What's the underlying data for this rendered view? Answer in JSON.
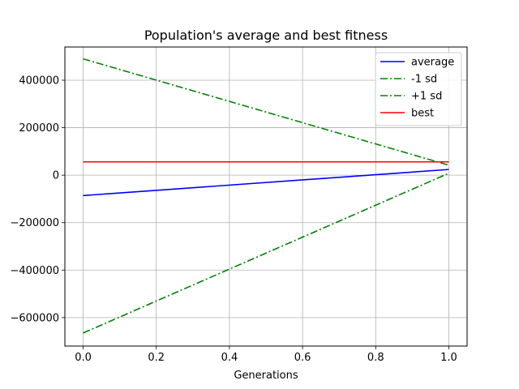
{
  "chart_data": {
    "type": "line",
    "title": "Population's average and best fitness",
    "xlabel": "Generations",
    "ylabel": "",
    "xlim": [
      -0.05,
      1.05
    ],
    "ylim": [
      -720000,
      540000
    ],
    "xticks": [
      0.0,
      0.2,
      0.4,
      0.6,
      0.8,
      1.0
    ],
    "xtick_labels": [
      "0.0",
      "0.2",
      "0.4",
      "0.6",
      "0.8",
      "1.0"
    ],
    "yticks": [
      -600000,
      -400000,
      -200000,
      0,
      200000,
      400000
    ],
    "ytick_labels": [
      "−600000",
      "−400000",
      "−200000",
      "0",
      "200000",
      "400000"
    ],
    "grid": true,
    "legend_position": "top-right",
    "x": [
      0,
      1
    ],
    "series": [
      {
        "name": "average",
        "values": [
          -86000,
          24000
        ],
        "color": "#0000ff",
        "style": "solid"
      },
      {
        "name": "-1 sd",
        "values": [
          -665000,
          8000
        ],
        "color": "#008000",
        "style": "dashdot"
      },
      {
        "name": "+1 sd",
        "values": [
          490000,
          42000
        ],
        "color": "#008000",
        "style": "dashdot"
      },
      {
        "name": "best",
        "values": [
          56000,
          56000
        ],
        "color": "#ff0000",
        "style": "solid"
      }
    ]
  }
}
